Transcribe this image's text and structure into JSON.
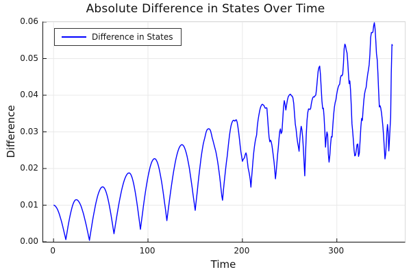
{
  "chart_data": {
    "type": "line",
    "title": "Absolute Difference in States Over Time",
    "xlabel": "Time",
    "ylabel": "Difference",
    "xlim": [
      -11,
      372
    ],
    "ylim": [
      0,
      0.06
    ],
    "grid": true,
    "xticks": [
      0,
      100,
      200,
      300
    ],
    "xtick_labels": [
      "0",
      "100",
      "200",
      "300"
    ],
    "yticks": [
      0.0,
      0.01,
      0.02,
      0.03,
      0.04,
      0.05,
      0.06
    ],
    "ytick_labels": [
      "0.00",
      "0.01",
      "0.02",
      "0.03",
      "0.04",
      "0.05",
      "0.06"
    ],
    "colors": {
      "line": "#0000ff",
      "grid": "#e9e9e9",
      "spine": "#111111",
      "text": "#111111"
    },
    "legend": {
      "position": "top-left",
      "entries": [
        {
          "label": "Difference in States",
          "color": "#0000ff"
        }
      ]
    },
    "series": [
      {
        "name": "Difference in States",
        "color": "#0000ff",
        "sample_step": 0.8,
        "keypoints": [
          [
            0,
            0.01
          ],
          [
            13,
            0.0006
          ],
          [
            24,
            0.0115
          ],
          [
            38,
            0.0004
          ],
          [
            52,
            0.015
          ],
          [
            64,
            0.0022
          ],
          [
            80,
            0.0188
          ],
          [
            92,
            0.0034
          ],
          [
            107,
            0.0227
          ],
          [
            120,
            0.0058
          ],
          [
            136,
            0.0265
          ],
          [
            150,
            0.0085
          ],
          [
            164,
            0.0305
          ],
          [
            179,
            0.0115
          ],
          [
            192,
            0.0335
          ],
          [
            200,
            0.021
          ],
          [
            203,
            0.024
          ],
          [
            209,
            0.0149
          ],
          [
            215,
            0.029
          ],
          [
            222,
            0.039
          ],
          [
            229,
            0.028
          ],
          [
            235,
            0.0177
          ],
          [
            241,
            0.03
          ],
          [
            246,
            0.0385
          ],
          [
            251,
            0.041
          ],
          [
            256,
            0.03
          ],
          [
            260,
            0.0225
          ],
          [
            263,
            0.029
          ],
          [
            266,
            0.0205
          ],
          [
            270,
            0.033
          ],
          [
            276,
            0.042
          ],
          [
            281,
            0.046
          ],
          [
            285,
            0.037
          ],
          [
            288,
            0.0295
          ],
          [
            291,
            0.0245
          ],
          [
            295,
            0.0285
          ],
          [
            299,
            0.0405
          ],
          [
            303,
            0.0445
          ],
          [
            307,
            0.05
          ],
          [
            310,
            0.0545
          ],
          [
            313,
            0.043
          ],
          [
            316,
            0.033
          ],
          [
            319,
            0.028
          ],
          [
            323,
            0.0235
          ],
          [
            327,
            0.033
          ],
          [
            331,
            0.046
          ],
          [
            335,
            0.052
          ],
          [
            339,
            0.0585
          ],
          [
            342,
            0.052
          ],
          [
            345,
            0.038
          ],
          [
            348,
            0.031
          ],
          [
            351,
            0.0255
          ],
          [
            353,
            0.03
          ],
          [
            355,
            0.0235
          ],
          [
            357,
            0.033
          ],
          [
            359,
            0.0535
          ]
        ],
        "noise": {
          "lattice": 2.0,
          "amplitude_stops": [
            [
              0,
              0.0
            ],
            [
              140,
              0.0
            ],
            [
              195,
              0.001
            ],
            [
              255,
              0.0032
            ],
            [
              290,
              0.005
            ],
            [
              360,
              0.0052
            ]
          ]
        }
      }
    ]
  }
}
